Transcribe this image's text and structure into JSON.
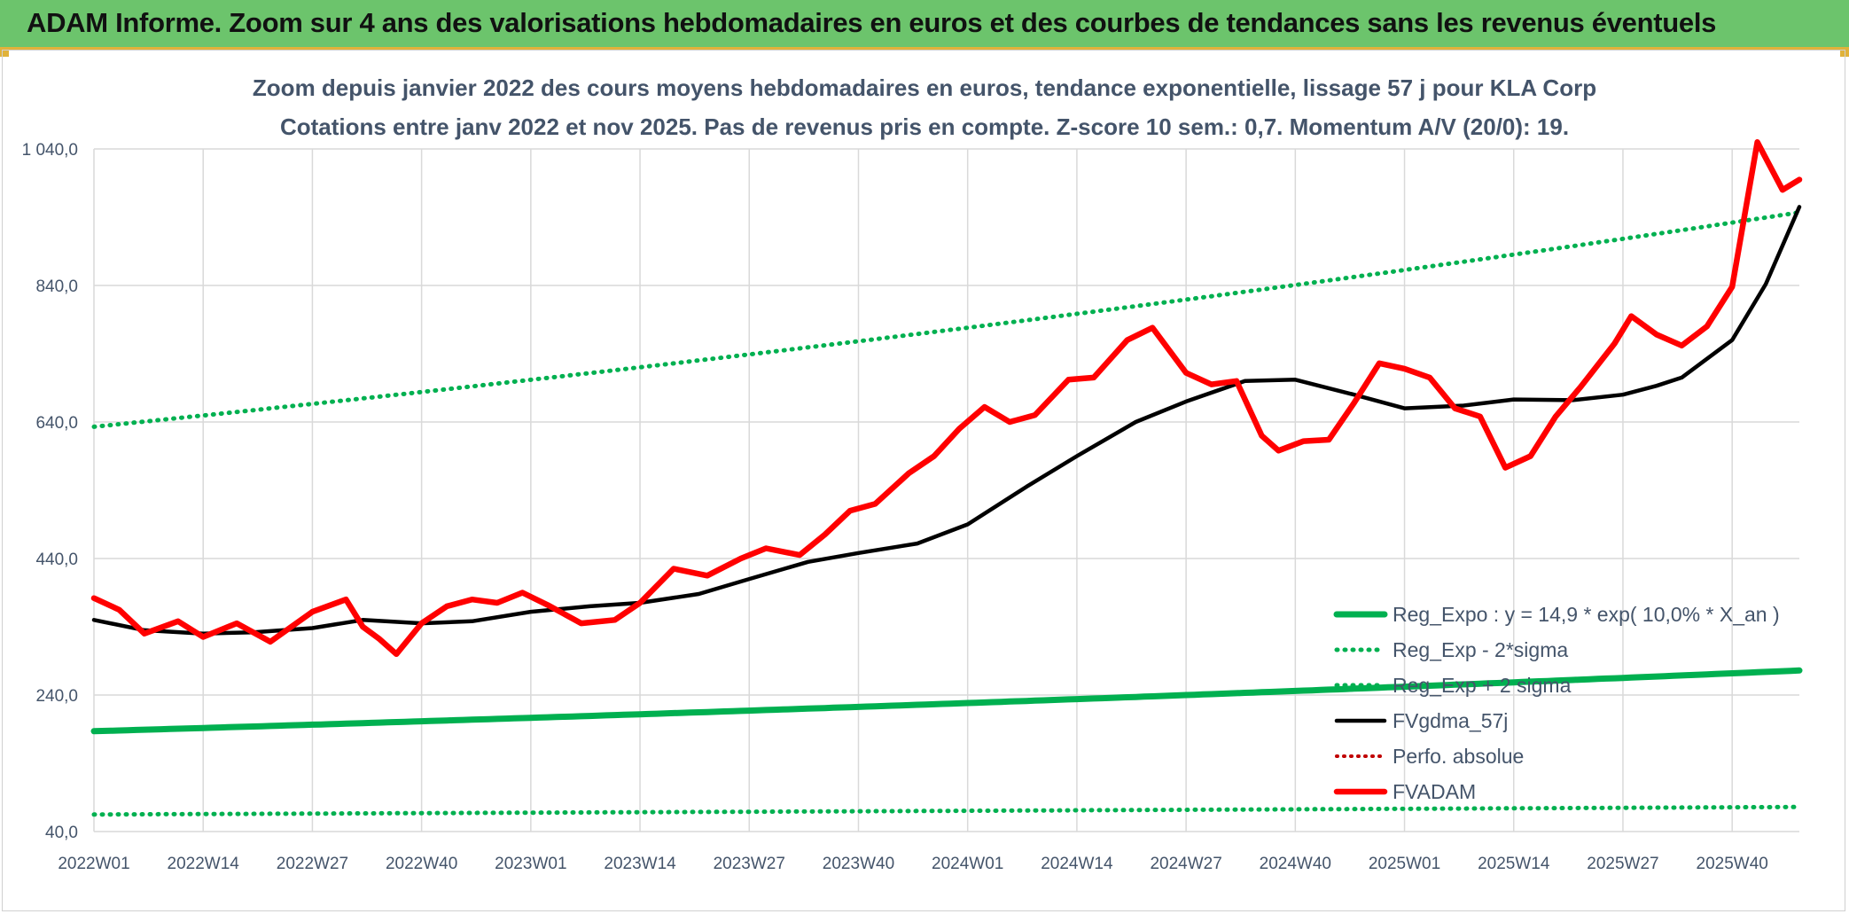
{
  "banner": {
    "title": "ADAM Informe. Zoom sur 4 ans des valorisations hebdomadaires en euros et des courbes de tendances sans les revenus éventuels"
  },
  "colors": {
    "banner": "#6cc46c",
    "accent": "#e0b23a",
    "reg_expo": "#00b050",
    "fvgdma": "#000000",
    "fvadam": "#ff0000",
    "perfo": "#c00000",
    "grid": "#d9d9d9",
    "text": "#44546a"
  },
  "chart_data": {
    "type": "line",
    "title": "Zoom depuis janvier 2022 des cours moyens hebdomadaires en euros, tendance exponentielle, lissage 57 j pour KLA Corp",
    "subtitle": "Cotations entre janv 2022 et nov 2025. Pas de revenus pris en compte. Z-score 10 sem.: 0,7. Momentum A/V (20/0): 19.",
    "xlabel": "",
    "ylabel": "",
    "ylim": [
      40,
      1040
    ],
    "yticks": [
      "1 040,0",
      "840,0",
      "640,0",
      "440,0",
      "240,0",
      "40,0"
    ],
    "ytick_values": [
      1040,
      840,
      640,
      440,
      240,
      40
    ],
    "categories": [
      "2022W01",
      "2022W14",
      "2022W27",
      "2022W40",
      "2023W01",
      "2023W14",
      "2023W27",
      "2023W40",
      "2024W01",
      "2024W14",
      "2024W27",
      "2024W40",
      "2025W01",
      "2025W14",
      "2025W27",
      "2025W40"
    ],
    "n_weeks": 204,
    "legend_position": "bottom-right",
    "series": [
      {
        "name": "Reg_Expo : y = 14,9 * exp( 10,0% *  X_an )",
        "style": "solid-thick",
        "x": [
          0,
          203
        ],
        "values": [
          187,
          276
        ]
      },
      {
        "name": "Reg_Exp - 2*sigma",
        "style": "dotted",
        "x": [
          0,
          203
        ],
        "values": [
          65,
          76
        ]
      },
      {
        "name": "Reg_Exp + 2 sigma",
        "style": "dotted",
        "x": [
          0,
          203
        ],
        "values": [
          633,
          947
        ]
      },
      {
        "name": "FVgdma_57j",
        "style": "solid",
        "x": [
          0,
          6,
          13,
          19,
          26,
          32,
          39,
          45,
          52,
          59,
          65,
          72,
          78,
          85,
          91,
          98,
          104,
          111,
          117,
          124,
          130,
          137,
          143,
          150,
          156,
          163,
          169,
          176,
          182,
          186,
          189,
          195,
          199,
          203
        ],
        "values": [
          350,
          335,
          330,
          332,
          338,
          350,
          345,
          348,
          362,
          370,
          375,
          388,
          410,
          435,
          448,
          462,
          490,
          545,
          590,
          640,
          670,
          700,
          702,
          680,
          660,
          664,
          673,
          672,
          680,
          693,
          705,
          760,
          842,
          955
        ]
      },
      {
        "name": "Perfo. absolue",
        "style": "dotted",
        "x": [],
        "values": []
      },
      {
        "name": "FVADAM",
        "style": "solid-thick",
        "x": [
          0,
          3,
          6,
          10,
          13,
          17,
          21,
          26,
          30,
          32,
          34,
          36,
          39,
          42,
          45,
          48,
          51,
          54,
          58,
          62,
          65,
          69,
          73,
          77,
          80,
          84,
          87,
          90,
          93,
          97,
          100,
          103,
          106,
          109,
          112,
          116,
          119,
          123,
          126,
          130,
          133,
          136,
          139,
          141,
          144,
          147,
          150,
          153,
          156,
          159,
          162,
          165,
          168,
          171,
          174,
          177,
          181,
          183,
          186,
          189,
          192,
          195,
          198,
          201,
          203
        ],
        "values": [
          382,
          365,
          330,
          348,
          325,
          345,
          318,
          362,
          380,
          340,
          322,
          300,
          345,
          370,
          380,
          375,
          390,
          372,
          345,
          350,
          375,
          425,
          415,
          440,
          455,
          445,
          475,
          510,
          520,
          565,
          590,
          630,
          662,
          640,
          650,
          702,
          705,
          760,
          778,
          712,
          695,
          700,
          620,
          598,
          612,
          614,
          668,
          726,
          718,
          705,
          660,
          648,
          573,
          590,
          648,
          692,
          755,
          795,
          768,
          752,
          780,
          838,
          1050,
          980,
          995
        ]
      }
    ]
  }
}
